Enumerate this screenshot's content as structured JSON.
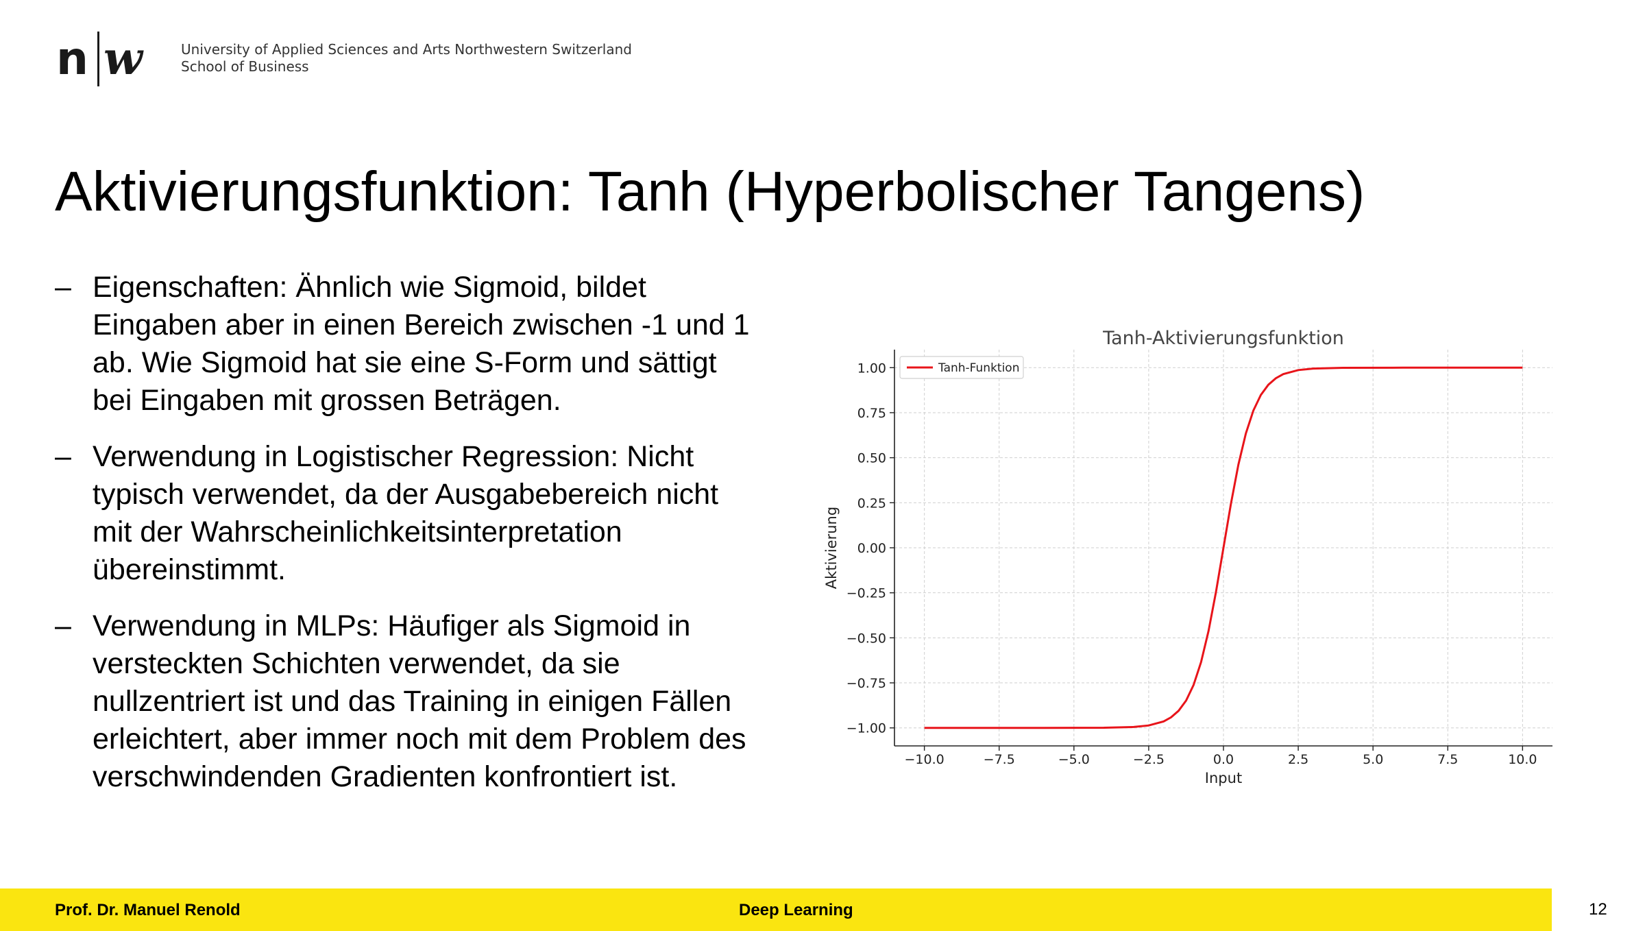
{
  "header": {
    "institution_line1": "University of Applied Sciences and Arts Northwestern Switzerland",
    "institution_line2": "School of Business"
  },
  "slide": {
    "title": "Aktivierungsfunktion: Tanh (Hyperbolischer Tangens)",
    "bullets": [
      {
        "marker": "–",
        "lines": [
          "Eigenschaften: Ähnlich wie Sigmoid, bildet",
          "Eingaben aber in einen Bereich zwischen -1 und 1",
          "ab. Wie Sigmoid hat sie eine S-Form und sättigt",
          "bei Eingaben mit grossen Beträgen."
        ]
      },
      {
        "marker": "–",
        "lines": [
          "Verwendung in Logistischer Regression: Nicht",
          "typisch verwendet, da der Ausgabebereich nicht",
          "mit der Wahrscheinlichkeitsinterpretation",
          "übereinstimmt."
        ]
      },
      {
        "marker": "–",
        "lines": [
          "Verwendung in MLPs: Häufiger als Sigmoid in",
          "versteckten Schichten verwendet, da sie",
          "nullzentriert ist und das Training in einigen Fällen",
          "erleichtert, aber immer noch mit dem Problem des",
          "verschwindenden Gradienten konfrontiert ist."
        ]
      }
    ]
  },
  "chart_data": {
    "type": "line",
    "title": "Tanh-Aktivierungsfunktion",
    "xlabel": "Input",
    "ylabel": "Aktivierung",
    "xlim": [
      -11,
      11
    ],
    "ylim": [
      -1.1,
      1.1
    ],
    "x_ticks": [
      -10,
      -7.5,
      -5,
      -2.5,
      0,
      2.5,
      5,
      7.5,
      10
    ],
    "x_tick_labels": [
      "−10.0",
      "−7.5",
      "−5.0",
      "−2.5",
      "0.0",
      "2.5",
      "5.0",
      "7.5",
      "10.0"
    ],
    "y_ticks": [
      1,
      0.75,
      0.5,
      0.25,
      0,
      -0.25,
      -0.5,
      -0.75,
      -1
    ],
    "y_tick_labels": [
      "1.00",
      "0.75",
      "0.50",
      "0.25",
      "0.00",
      "−0.25",
      "−0.50",
      "−0.75",
      "−1.00"
    ],
    "grid": true,
    "legend": "top-left",
    "series": [
      {
        "name": "Tanh-Funktion",
        "color": "#e8141a",
        "x": [
          -10,
          -8,
          -6,
          -4,
          -3,
          -2.5,
          -2,
          -1.75,
          -1.5,
          -1.25,
          -1,
          -0.75,
          -0.5,
          -0.25,
          0,
          0.25,
          0.5,
          0.75,
          1,
          1.25,
          1.5,
          1.75,
          2,
          2.5,
          3,
          4,
          6,
          8,
          10
        ],
        "y": [
          -1,
          -1,
          -1,
          -0.9993,
          -0.9951,
          -0.9866,
          -0.964,
          -0.9414,
          -0.9051,
          -0.8483,
          -0.7616,
          -0.6351,
          -0.4621,
          -0.2449,
          0,
          0.2449,
          0.4621,
          0.6351,
          0.7616,
          0.8483,
          0.9051,
          0.9414,
          0.964,
          0.9866,
          0.9951,
          0.9993,
          1,
          1,
          1
        ]
      }
    ]
  },
  "footer": {
    "author": "Prof. Dr. Manuel Renold",
    "course": "Deep Learning",
    "page_number": "12",
    "bar_color": "#fae510"
  }
}
